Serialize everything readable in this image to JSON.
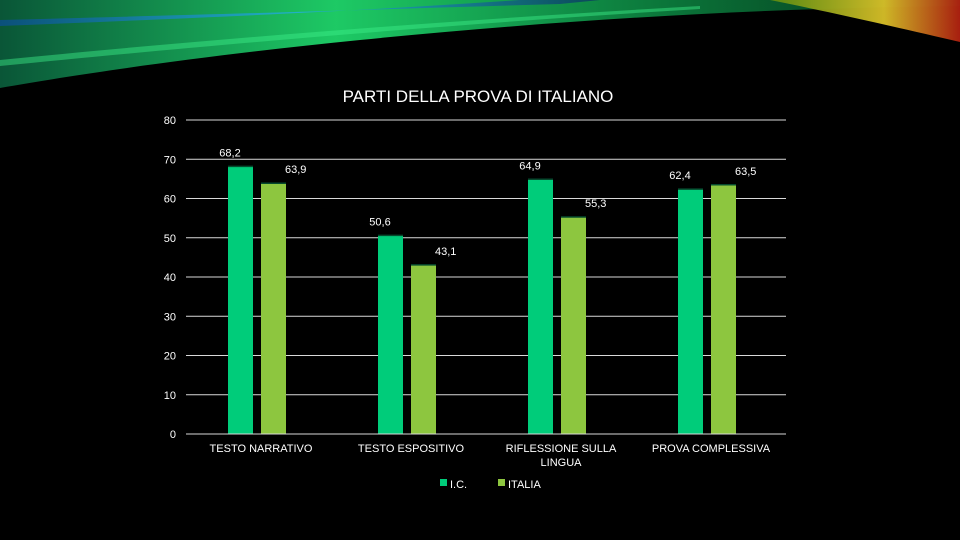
{
  "colors": {
    "background": "#000000",
    "grid": "#d9d9d9",
    "accent_dark": "#064a2e"
  },
  "chart_data": {
    "type": "bar",
    "title": "PARTI DELLA PROVA DI ITALIANO",
    "xlabel": "",
    "ylabel": "",
    "ylim": [
      0,
      80
    ],
    "yticks": [
      0,
      10,
      20,
      30,
      40,
      50,
      60,
      70,
      80
    ],
    "grid": true,
    "legend_position": "bottom",
    "categories": [
      [
        "TESTO NARRATIVO"
      ],
      [
        "TESTO ESPOSITIVO"
      ],
      [
        "RIFLESSIONE SULLA",
        "LINGUA"
      ],
      [
        "PROVA COMPLESSIVA"
      ]
    ],
    "series": [
      {
        "name": "I.C.",
        "color": "#00cc7a",
        "values": [
          68.2,
          50.6,
          64.9,
          62.4
        ],
        "labels": [
          "68,2",
          "50,6",
          "64,9",
          "62,4"
        ]
      },
      {
        "name": "ITALIA",
        "color": "#8dc63f",
        "values": [
          63.9,
          43.1,
          55.3,
          63.5
        ],
        "labels": [
          "63,9",
          "43,1",
          "55,3",
          "63,5"
        ]
      }
    ]
  }
}
